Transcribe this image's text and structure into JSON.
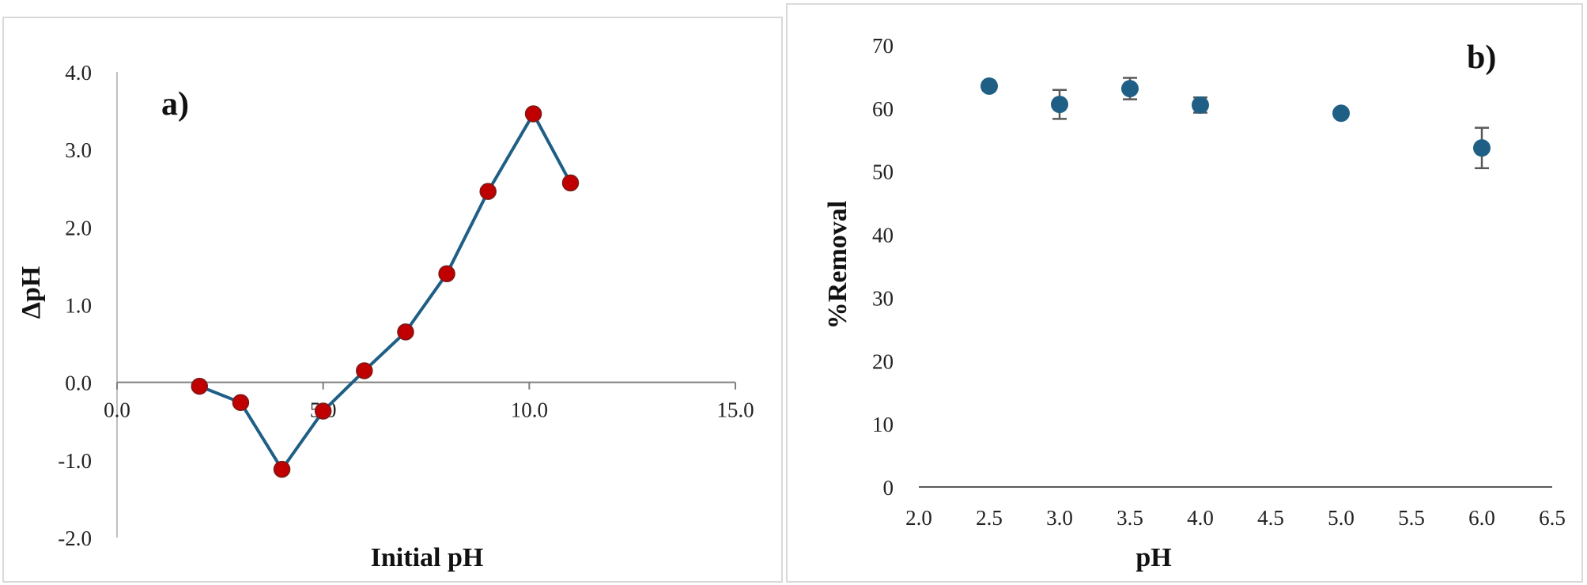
{
  "figure": {
    "panels": [
      "a",
      "b"
    ]
  },
  "chart_data": [
    {
      "type": "line",
      "panel_label": "a)",
      "title": "",
      "xlabel": "Initial pH",
      "ylabel": "ΔpH",
      "xlim": [
        0,
        15
      ],
      "ylim": [
        -2,
        4
      ],
      "xticks": [
        "0.0",
        "5.0",
        "10.0",
        "15.0"
      ],
      "yticks": [
        "4.0",
        "3.0",
        "2.0",
        "1.0",
        "0.0",
        "-1.0",
        "-2.0"
      ],
      "xtick_values": [
        0,
        5,
        10,
        15
      ],
      "ytick_values": [
        4,
        3,
        2,
        1,
        0,
        -1,
        -2
      ],
      "grid": false,
      "legend": "none",
      "series": [
        {
          "line_color": "#1f5f85",
          "marker_color": "#c00000",
          "x": [
            2,
            3,
            4,
            5,
            6,
            7,
            8,
            9,
            10.1,
            11
          ],
          "y": [
            -0.05,
            -0.26,
            -1.12,
            -0.37,
            0.15,
            0.65,
            1.4,
            2.46,
            3.46,
            2.57
          ]
        }
      ]
    },
    {
      "type": "scatter",
      "panel_label": "b)",
      "title": "",
      "xlabel": "pH",
      "ylabel": "%Removal",
      "xlim": [
        2.0,
        6.5
      ],
      "ylim": [
        0,
        70
      ],
      "xticks": [
        "2.0",
        "2.5",
        "3.0",
        "3.5",
        "4.0",
        "4.5",
        "5.0",
        "5.5",
        "6.0",
        "6.5"
      ],
      "yticks": [
        "70",
        "60",
        "50",
        "40",
        "30",
        "20",
        "10",
        "0"
      ],
      "xtick_values": [
        2.0,
        2.5,
        3.0,
        3.5,
        4.0,
        4.5,
        5.0,
        5.5,
        6.0,
        6.5
      ],
      "ytick_values": [
        70,
        60,
        50,
        40,
        30,
        20,
        10,
        0
      ],
      "grid": false,
      "legend": "none",
      "series": [
        {
          "marker_color": "#1f5f85",
          "x": [
            2.5,
            3.0,
            3.5,
            4.0,
            5.0,
            6.0
          ],
          "y": [
            63.5,
            60.6,
            63.1,
            60.5,
            59.2,
            53.7
          ],
          "error": [
            0.7,
            2.3,
            1.7,
            1.2,
            0.6,
            3.2
          ]
        }
      ]
    }
  ]
}
